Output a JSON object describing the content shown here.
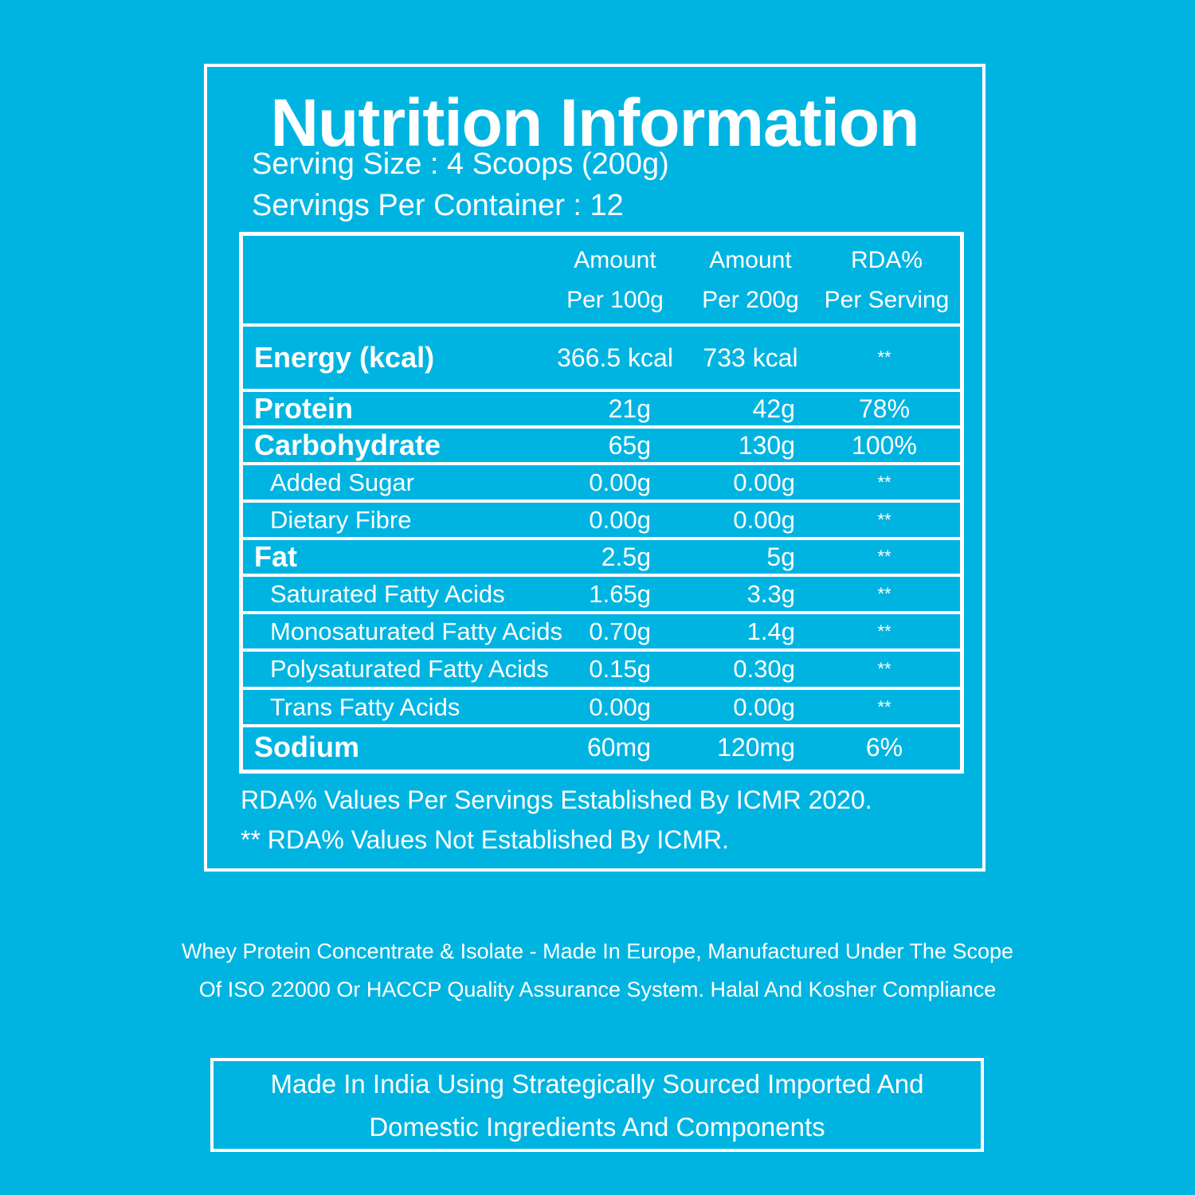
{
  "title": "Nutrition Information",
  "serving_size": "Serving Size : 4 Scoops (200g)",
  "servings_per_container": "Servings Per Container : 12",
  "table": {
    "headers": {
      "col1_line1": "Amount",
      "col1_line2": "Per 100g",
      "col2_line1": "Amount",
      "col2_line2": "Per 200g",
      "col3_line1": "RDA%",
      "col3_line2": "Per Serving"
    },
    "rows": [
      {
        "name": "Energy (kcal)",
        "per100": "366.5 kcal",
        "per200": "733 kcal",
        "rda": "**"
      },
      {
        "name": "Protein",
        "per100": "21g",
        "per200": "42g",
        "rda": "78%"
      },
      {
        "name": "Carbohydrate",
        "per100": "65g",
        "per200": "130g",
        "rda": "100%"
      },
      {
        "name": "Added Sugar",
        "per100": "0.00g",
        "per200": "0.00g",
        "rda": "**"
      },
      {
        "name": "Dietary Fibre",
        "per100": "0.00g",
        "per200": "0.00g",
        "rda": "**"
      },
      {
        "name": "Fat",
        "per100": "2.5g",
        "per200": "5g",
        "rda": "**"
      },
      {
        "name": "Saturated Fatty Acids",
        "per100": "1.65g",
        "per200": "3.3g",
        "rda": "**"
      },
      {
        "name": "Monosaturated Fatty Acids",
        "per100": "0.70g",
        "per200": "1.4g",
        "rda": "**"
      },
      {
        "name": "Polysaturated Fatty Acids",
        "per100": "0.15g",
        "per200": "0.30g",
        "rda": "**"
      },
      {
        "name": "Trans Fatty Acids",
        "per100": "0.00g",
        "per200": "0.00g",
        "rda": "**"
      },
      {
        "name": "Sodium",
        "per100": "60mg",
        "per200": "120mg",
        "rda": "6%"
      }
    ]
  },
  "notes": {
    "rda_established": "RDA%  Values Per Servings Established By ICMR 2020.",
    "rda_not_established": "** RDA%  Values Not Established By ICMR."
  },
  "manufacturing": {
    "line1": "Whey Protein Concentrate & Isolate - Made In Europe, Manufactured Under The Scope",
    "line2": "Of ISO 22000 Or HACCP Quality Assurance System. Halal And Kosher Compliance"
  },
  "origin": {
    "line1": "Made In India Using Strategically Sourced Imported And",
    "line2": "Domestic Ingredients And Components"
  },
  "colors": {
    "background": "#00b4e1",
    "foreground": "#ffffff"
  }
}
